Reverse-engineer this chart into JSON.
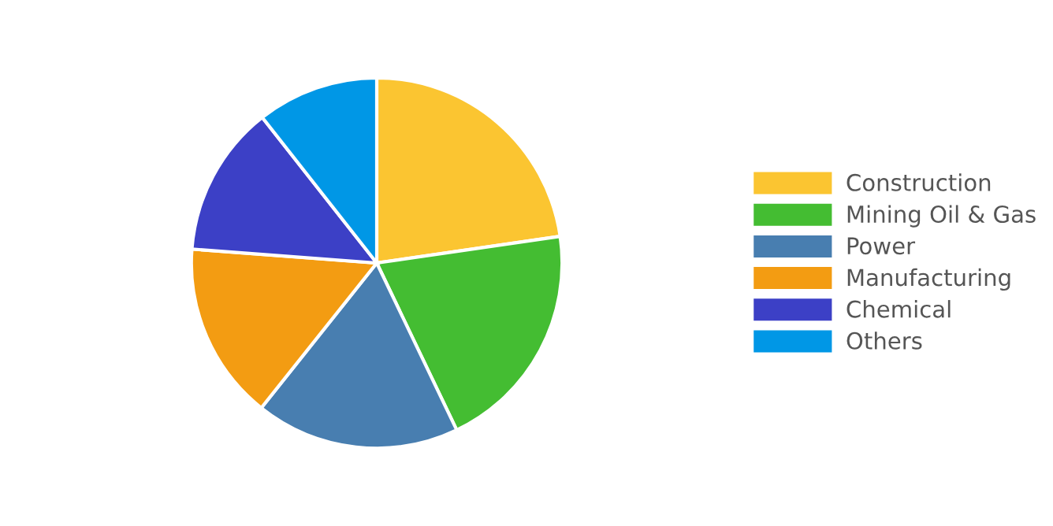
{
  "chart_data": {
    "type": "pie",
    "categories": [
      "Construction",
      "Mining Oil & Gas",
      "Power",
      "Manufacturing",
      "Chemical",
      "Others"
    ],
    "values": [
      22.7,
      20.2,
      17.8,
      15.5,
      13.2,
      10.6
    ],
    "colors": [
      "#fbc531",
      "#44bd32",
      "#487eb0",
      "#f39c12",
      "#3c40c6",
      "#0097e6"
    ],
    "legend": "right"
  }
}
